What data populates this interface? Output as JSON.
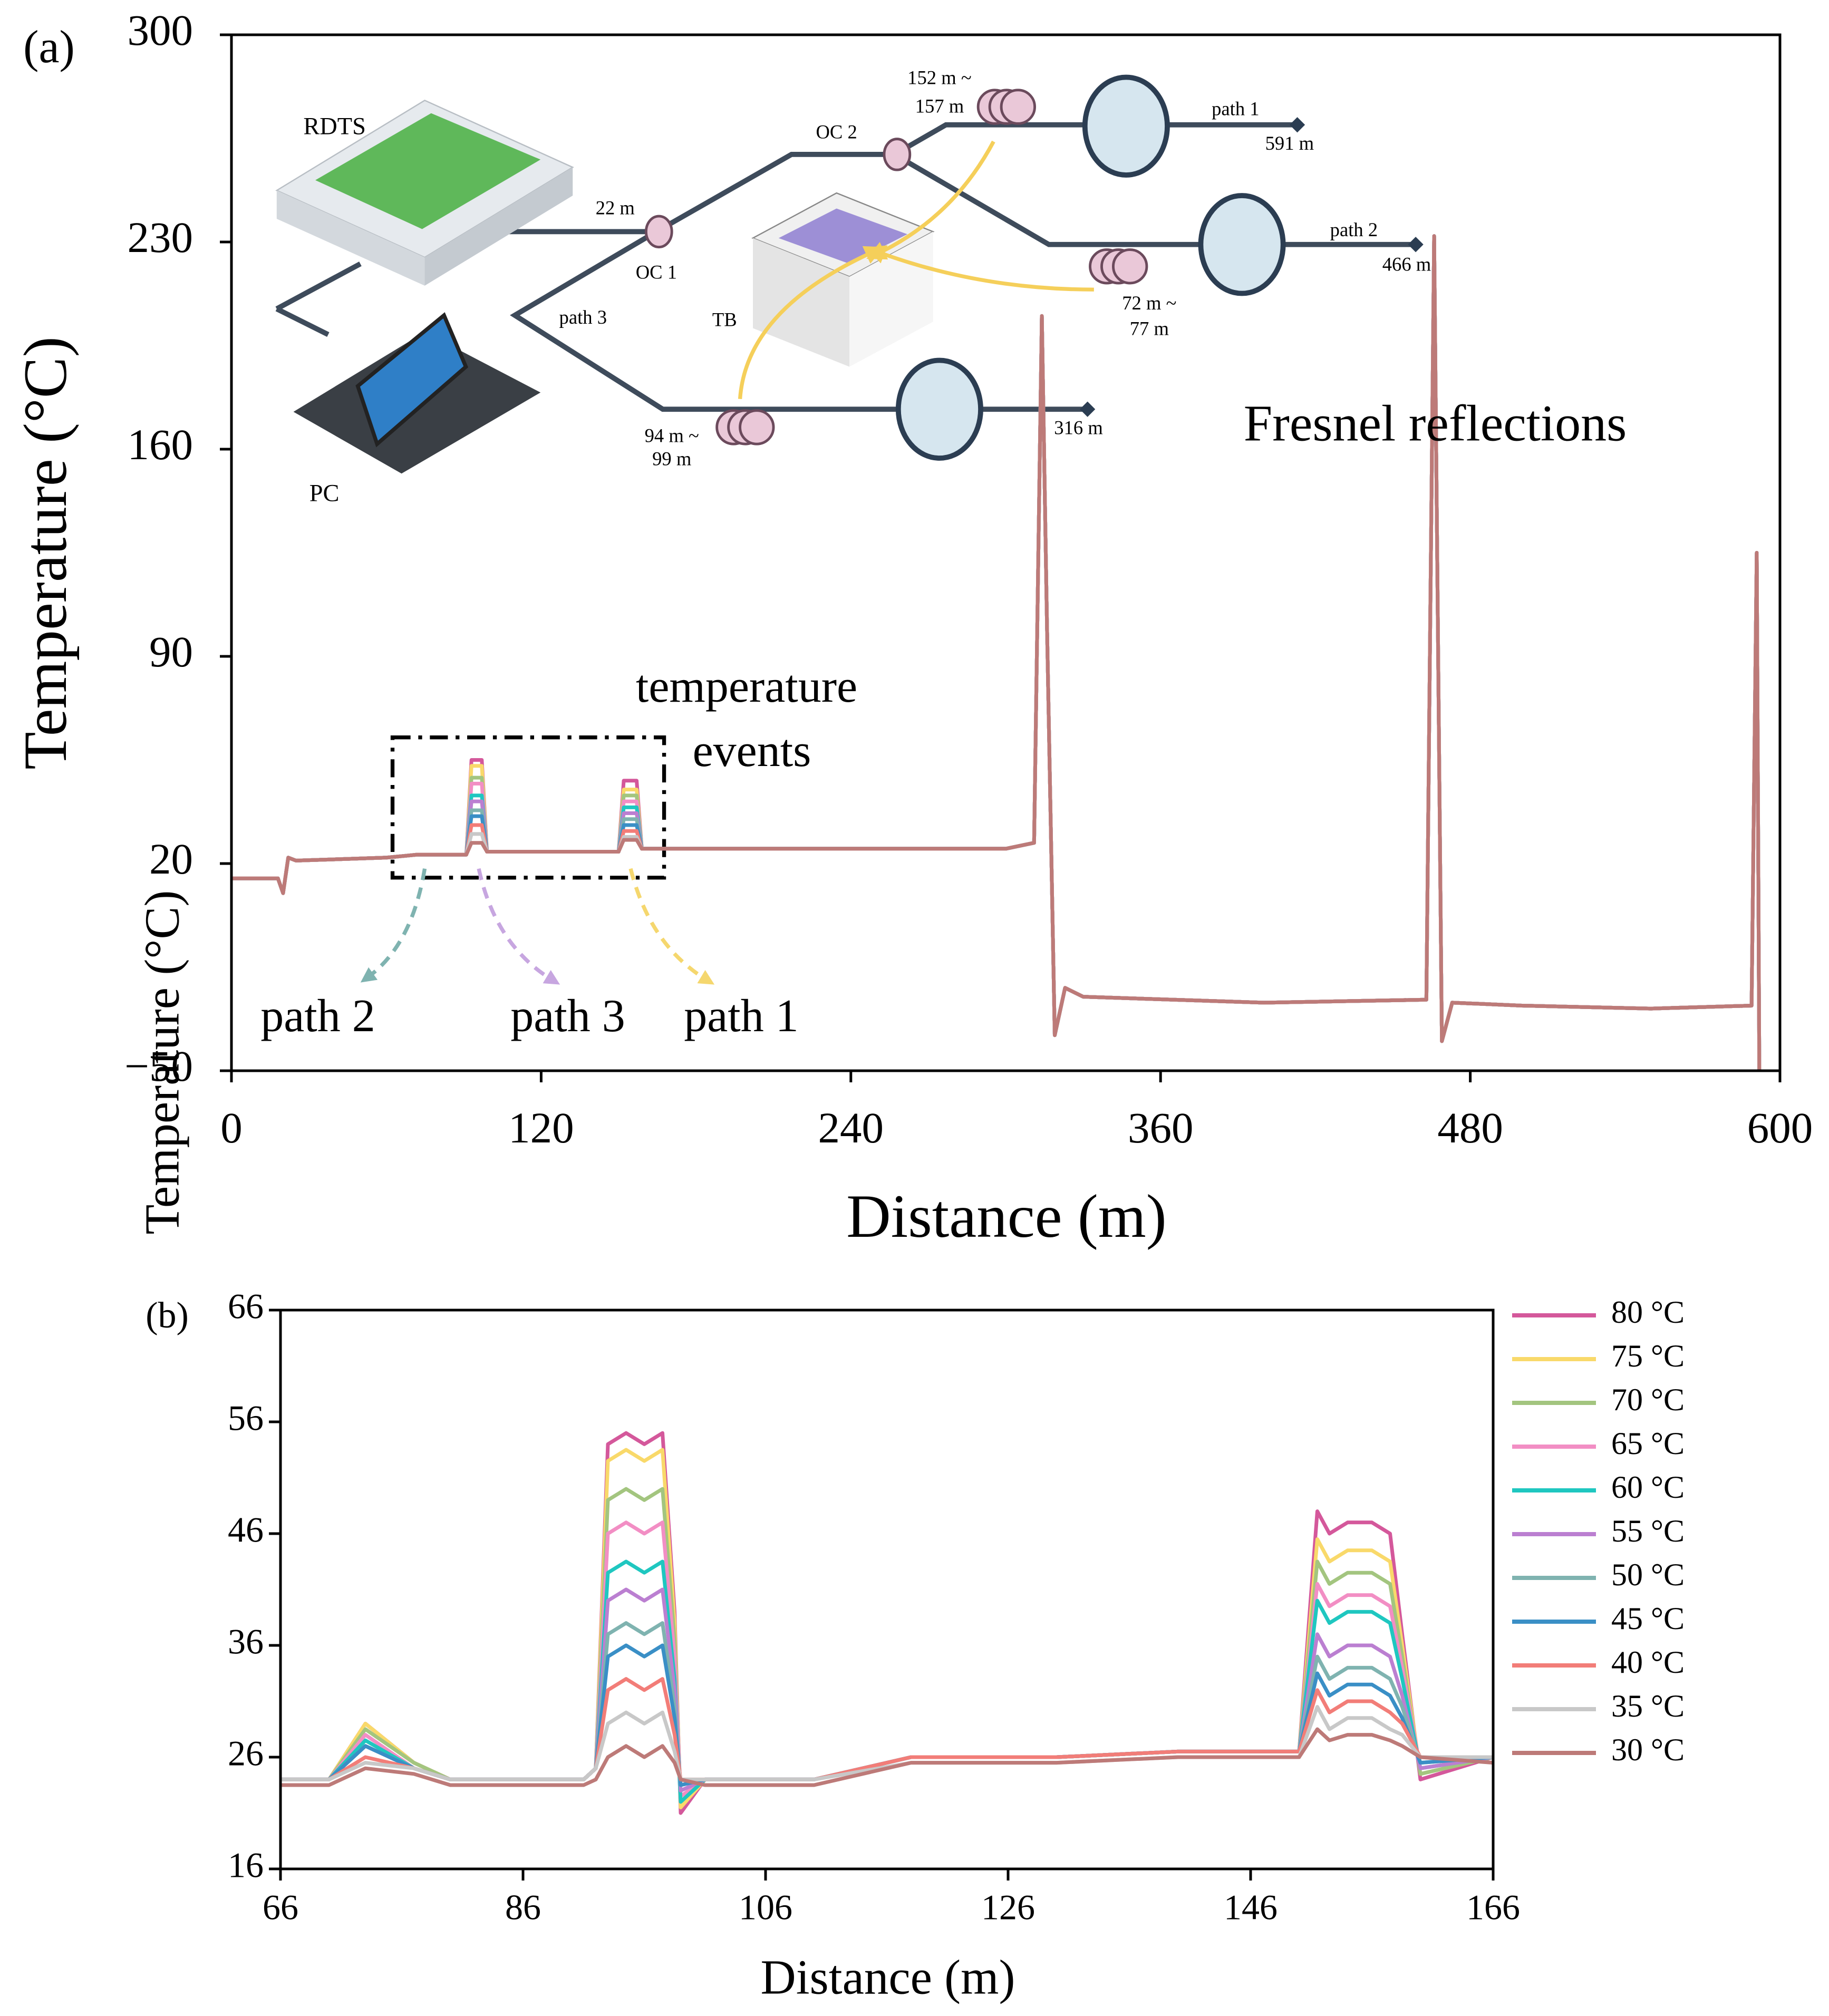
{
  "chart_data": [
    {
      "type": "line",
      "panel_label": "(a)",
      "xlabel": "Distance (m)",
      "ylabel": "Temperature (°C)",
      "xlim": [
        0,
        600
      ],
      "ylim": [
        -50,
        300
      ],
      "xticks": [
        0,
        120,
        240,
        360,
        480,
        600
      ],
      "yticks": [
        {
          "value": -50,
          "label": "−50"
        },
        20,
        90,
        160,
        230,
        300
      ],
      "annotations": [
        "Fresnel reflections",
        "temperature",
        "events",
        "path 2",
        "path 3",
        "path 1"
      ],
      "inset_labels": [
        "RDTS",
        "PC",
        "22 m",
        "OC 1",
        "OC 2",
        "TB",
        "path 3",
        "152 m ~",
        "157 m",
        "path 1",
        "591 m",
        "path 2",
        "466 m",
        "72 m ~",
        "77 m",
        "94 m ~",
        "99 m",
        "316 m"
      ],
      "x": [
        0,
        18,
        20,
        22,
        25,
        60,
        72,
        91,
        93,
        97,
        99,
        150,
        152,
        157,
        159,
        200,
        250,
        300,
        311,
        314,
        316,
        319,
        323,
        330,
        400,
        463,
        466,
        469,
        473,
        500,
        550,
        589,
        591,
        592
      ],
      "series": [
        {
          "color": "#d4589b",
          "values": [
            15,
            15,
            10,
            22,
            21,
            22,
            23,
            23,
            55,
            55,
            24,
            24,
            48,
            48,
            25,
            25,
            25,
            25,
            27,
            205,
            100,
            -38,
            -22,
            -25,
            -27,
            -26,
            232,
            -40,
            -27,
            -28,
            -29,
            -28,
            125,
            -50
          ]
        },
        {
          "color": "#f9d96a",
          "values": [
            15,
            15,
            10,
            22,
            21,
            22,
            23,
            23,
            53,
            53,
            24,
            24,
            45,
            45,
            25,
            25,
            25,
            25,
            27,
            205,
            100,
            -38,
            -22,
            -25,
            -27,
            -26,
            232,
            -40,
            -27,
            -28,
            -29,
            -28,
            125,
            -50
          ]
        },
        {
          "color": "#a3c57f",
          "values": [
            15,
            15,
            10,
            22,
            21,
            22,
            23,
            23,
            49,
            49,
            24,
            24,
            43,
            43,
            25,
            25,
            25,
            25,
            27,
            205,
            100,
            -38,
            -22,
            -25,
            -27,
            -26,
            232,
            -40,
            -27,
            -28,
            -29,
            -28,
            125,
            -50
          ]
        },
        {
          "color": "#f28ec4",
          "values": [
            15,
            15,
            10,
            22,
            21,
            22,
            23,
            23,
            47,
            47,
            24,
            24,
            41,
            41,
            25,
            25,
            25,
            25,
            27,
            205,
            100,
            -38,
            -22,
            -25,
            -27,
            -26,
            232,
            -40,
            -27,
            -28,
            -29,
            -28,
            125,
            -50
          ]
        },
        {
          "color": "#1fc7c0",
          "values": [
            15,
            15,
            10,
            22,
            21,
            22,
            23,
            23,
            43,
            43,
            24,
            24,
            39,
            39,
            25,
            25,
            25,
            25,
            27,
            205,
            100,
            -38,
            -22,
            -25,
            -27,
            -26,
            232,
            -40,
            -27,
            -28,
            -29,
            -28,
            125,
            -50
          ]
        },
        {
          "color": "#bb7fd1",
          "values": [
            15,
            15,
            10,
            22,
            21,
            22,
            23,
            23,
            41,
            41,
            24,
            24,
            37,
            37,
            25,
            25,
            25,
            25,
            27,
            205,
            100,
            -38,
            -22,
            -25,
            -27,
            -26,
            232,
            -40,
            -27,
            -28,
            -29,
            -28,
            125,
            -50
          ]
        },
        {
          "color": "#7fb3b0",
          "values": [
            15,
            15,
            10,
            22,
            21,
            22,
            23,
            23,
            38,
            38,
            24,
            24,
            35,
            35,
            25,
            25,
            25,
            25,
            27,
            205,
            100,
            -38,
            -22,
            -25,
            -27,
            -26,
            232,
            -40,
            -27,
            -28,
            -29,
            -28,
            125,
            -50
          ]
        },
        {
          "color": "#3a8fc6",
          "values": [
            15,
            15,
            10,
            22,
            21,
            22,
            23,
            23,
            36,
            36,
            24,
            24,
            33,
            33,
            25,
            25,
            25,
            25,
            27,
            205,
            100,
            -38,
            -22,
            -25,
            -27,
            -26,
            232,
            -40,
            -27,
            -28,
            -29,
            -28,
            125,
            -50
          ]
        },
        {
          "color": "#f27d78",
          "values": [
            15,
            15,
            10,
            22,
            21,
            22,
            23,
            23,
            33,
            33,
            24,
            24,
            31,
            31,
            25,
            25,
            25,
            25,
            27,
            205,
            100,
            -38,
            -22,
            -25,
            -27,
            -26,
            232,
            -40,
            -27,
            -28,
            -29,
            -28,
            125,
            -50
          ]
        },
        {
          "color": "#c8c8c8",
          "values": [
            15,
            15,
            10,
            22,
            21,
            22,
            23,
            23,
            30,
            30,
            24,
            24,
            29,
            29,
            25,
            25,
            25,
            25,
            27,
            205,
            100,
            -38,
            -22,
            -25,
            -27,
            -26,
            232,
            -40,
            -27,
            -28,
            -29,
            -28,
            125,
            -50
          ]
        },
        {
          "color": "#bd7a78",
          "values": [
            15,
            15,
            10,
            22,
            21,
            22,
            23,
            23,
            27,
            27,
            24,
            24,
            28,
            28,
            25,
            25,
            25,
            25,
            27,
            205,
            100,
            -38,
            -22,
            -25,
            -27,
            -26,
            232,
            -40,
            -27,
            -28,
            -29,
            -28,
            125,
            -50
          ]
        }
      ]
    },
    {
      "type": "line",
      "panel_label": "(b)",
      "xlabel": "Distance (m)",
      "ylabel": "Temperature (°C)",
      "xlim": [
        66,
        166
      ],
      "ylim": [
        16,
        66
      ],
      "xticks": [
        66,
        86,
        106,
        126,
        146,
        166
      ],
      "yticks": [
        16,
        26,
        36,
        46,
        56,
        66
      ],
      "legend": "outside-right",
      "x": [
        66,
        70,
        73,
        77,
        80,
        91,
        92,
        93,
        94.5,
        96,
        97.5,
        98.5,
        99,
        101,
        110,
        118,
        130,
        140,
        150,
        151.5,
        152.5,
        154,
        156,
        157.5,
        158.5,
        160,
        166
      ],
      "series": [
        {
          "name": "80 °C",
          "color": "#d4589b",
          "values": [
            24,
            24,
            29,
            25.5,
            24,
            24,
            25,
            54,
            55,
            54,
            55,
            39,
            21,
            24,
            24,
            26,
            26,
            26.5,
            26.5,
            48,
            46,
            47,
            47,
            46,
            37,
            24,
            26
          ]
        },
        {
          "name": "75 °C",
          "color": "#f9d96a",
          "values": [
            24,
            24,
            29,
            25.5,
            24,
            24,
            25,
            52.5,
            53.5,
            52.5,
            53.5,
            38,
            21.5,
            24,
            24,
            26,
            26,
            26.5,
            26.5,
            45.5,
            43.5,
            44.5,
            44.5,
            43.5,
            36,
            24.5,
            26
          ]
        },
        {
          "name": "70 °C",
          "color": "#a3c57f",
          "values": [
            24,
            24,
            28.5,
            25.5,
            24,
            24,
            25,
            49,
            50,
            49,
            50,
            36.5,
            22,
            24,
            24,
            26,
            26,
            26.5,
            26.5,
            43.5,
            41.5,
            42.5,
            42.5,
            41.5,
            35,
            24.5,
            26
          ]
        },
        {
          "name": "65 °C",
          "color": "#f28ec4",
          "values": [
            24,
            24,
            28,
            25,
            24,
            24,
            25,
            46,
            47,
            46,
            47,
            35,
            22.5,
            24,
            24,
            26,
            26,
            26.5,
            26.5,
            41.5,
            39.5,
            40.5,
            40.5,
            39.5,
            34,
            25,
            26
          ]
        },
        {
          "name": "60 °C",
          "color": "#1fc7c0",
          "values": [
            24,
            24,
            27.5,
            25,
            24,
            24,
            25,
            42.5,
            43.5,
            42.5,
            43.5,
            33,
            22,
            24,
            24,
            26,
            26,
            26.5,
            26.5,
            40,
            38,
            39,
            39,
            38,
            33,
            25,
            26
          ]
        },
        {
          "name": "55 °C",
          "color": "#bb7fd1",
          "values": [
            24,
            24,
            27,
            25,
            24,
            24,
            25,
            40,
            41,
            40,
            41,
            32,
            23,
            24,
            24,
            26,
            26,
            26.5,
            26.5,
            37,
            35,
            36,
            36,
            35,
            31.5,
            25,
            26
          ]
        },
        {
          "name": "50 °C",
          "color": "#7fb3b0",
          "values": [
            24,
            24,
            27,
            25,
            24,
            24,
            25,
            37,
            38,
            37,
            38,
            30.5,
            23.5,
            24,
            24,
            26,
            26,
            26.5,
            26.5,
            35,
            33,
            34,
            34,
            33,
            30.5,
            25.5,
            26
          ]
        },
        {
          "name": "45 °C",
          "color": "#3a8fc6",
          "values": [
            24,
            24,
            27,
            25,
            24,
            24,
            25,
            35,
            36,
            35,
            36,
            29.5,
            23.5,
            24,
            24,
            26,
            26,
            26.5,
            26.5,
            33.5,
            31.5,
            32.5,
            32.5,
            31.5,
            29.5,
            25.5,
            26
          ]
        },
        {
          "name": "40 °C",
          "color": "#f27d78",
          "values": [
            24,
            24,
            26,
            25,
            24,
            24,
            25,
            32,
            33,
            32,
            33,
            28,
            24,
            24,
            24,
            26,
            26,
            26.5,
            26.5,
            32,
            30,
            31,
            31,
            30,
            29,
            26,
            26
          ]
        },
        {
          "name": "35 °C",
          "color": "#c8c8c8",
          "values": [
            24,
            24,
            25.5,
            25,
            24,
            24,
            25,
            29,
            30,
            29,
            30,
            26.5,
            24,
            24,
            24,
            25.5,
            25.5,
            26,
            26,
            30.5,
            28.5,
            29.5,
            29.5,
            28.5,
            28,
            26,
            26
          ]
        },
        {
          "name": "30 °C",
          "color": "#bd7a78",
          "values": [
            23.5,
            23.5,
            25,
            24.5,
            23.5,
            23.5,
            24,
            26,
            27,
            26,
            27,
            25.5,
            24,
            23.5,
            23.5,
            25.5,
            25.5,
            26,
            26,
            28.5,
            27.5,
            28,
            28,
            27.5,
            27,
            26,
            25.5
          ]
        }
      ]
    }
  ]
}
